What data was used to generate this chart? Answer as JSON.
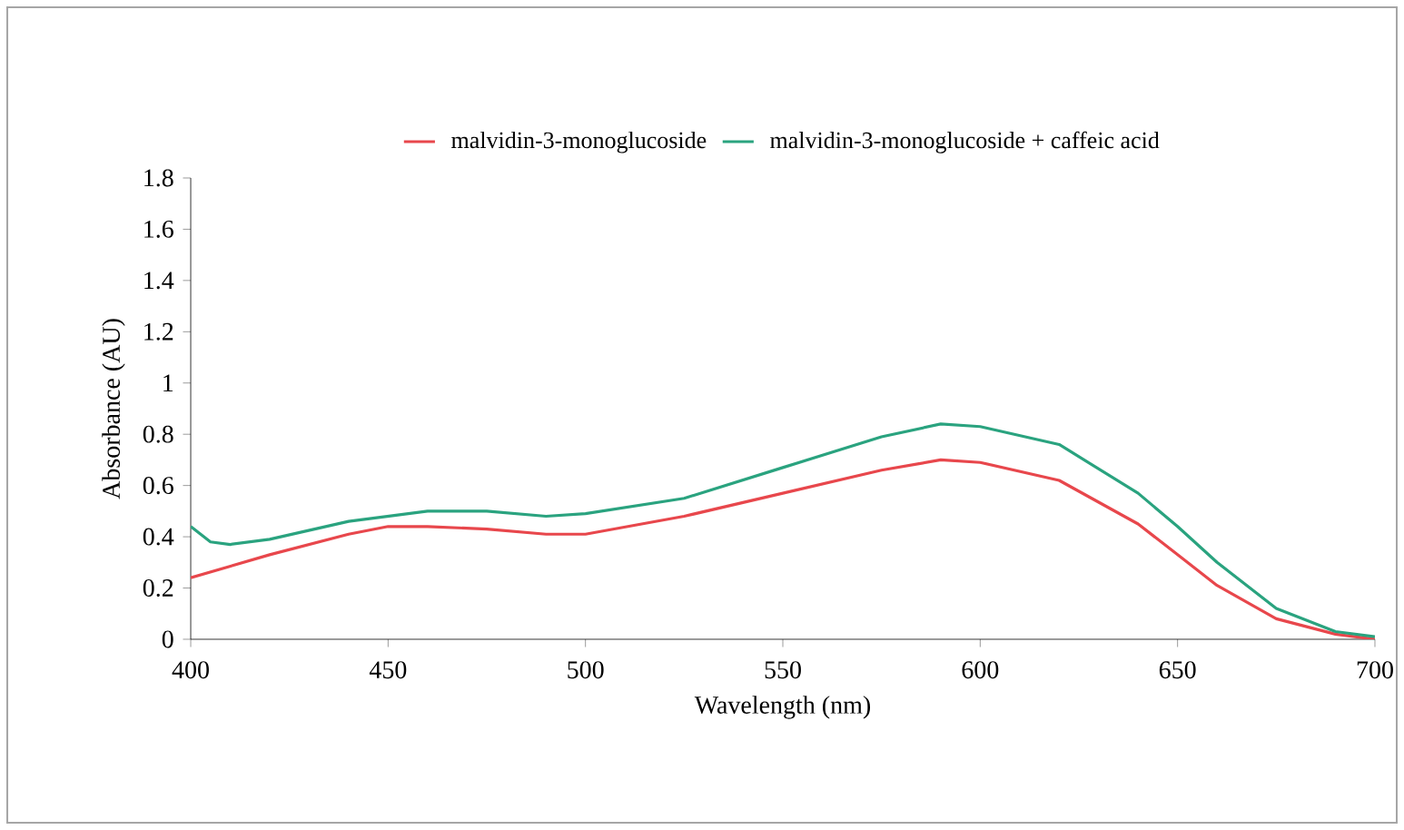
{
  "chart_data": {
    "type": "line",
    "xlabel": "Wavelength (nm)",
    "ylabel": "Absorbance (AU)",
    "xlim": [
      400,
      700
    ],
    "xticks": [
      400,
      450,
      500,
      550,
      600,
      650,
      700
    ],
    "ylim": [
      0,
      1.8
    ],
    "yticks": [
      0,
      0.2,
      0.4,
      0.6,
      0.8,
      1,
      1.2,
      1.4,
      1.6,
      1.8
    ],
    "legend": "top",
    "grid": false,
    "marker": "none",
    "series": [
      {
        "name": "malvidin-3-monoglucoside",
        "color": "#e8474c",
        "x": [
          400,
          420,
          440,
          450,
          460,
          475,
          490,
          500,
          525,
          550,
          575,
          590,
          600,
          620,
          640,
          650,
          660,
          675,
          690,
          700
        ],
        "values": [
          0.24,
          0.33,
          0.41,
          0.44,
          0.44,
          0.43,
          0.41,
          0.41,
          0.48,
          0.57,
          0.66,
          0.7,
          0.69,
          0.62,
          0.45,
          0.33,
          0.21,
          0.08,
          0.02,
          0
        ]
      },
      {
        "name": "malvidin-3-monoglucoside + caffeic acid",
        "color": "#2aa37f",
        "x": [
          400,
          405,
          410,
          420,
          440,
          460,
          475,
          490,
          500,
          525,
          550,
          575,
          590,
          600,
          620,
          640,
          650,
          660,
          675,
          690,
          700
        ],
        "values": [
          0.44,
          0.38,
          0.37,
          0.39,
          0.46,
          0.5,
          0.5,
          0.48,
          0.49,
          0.55,
          0.67,
          0.79,
          0.84,
          0.83,
          0.76,
          0.57,
          0.44,
          0.3,
          0.12,
          0.03,
          0.01
        ]
      }
    ]
  }
}
